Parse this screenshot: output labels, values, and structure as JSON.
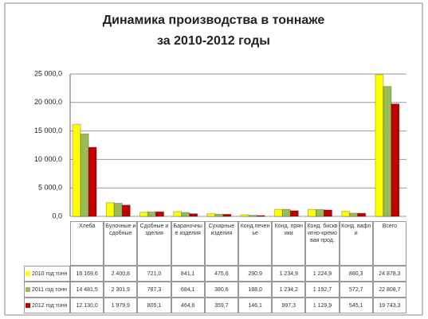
{
  "chart_data": {
    "type": "bar",
    "title": "Динамика производства в тоннаже",
    "subtitle": "за 2010-2012 годы",
    "categories": [
      "Хлеба",
      "Булочные и сдобные",
      "Сдобные изделия",
      "Бараночные изделия",
      "Сухарные изделия",
      "Конд.печенье",
      "Конд. пряники",
      "Конд. бисквитно-кремовая прод.",
      "Конд. вафли",
      "Всего"
    ],
    "series": [
      {
        "name": "2010 год тонн",
        "color": "#ffff00",
        "values": [
          16169.6,
          2400.8,
          721.0,
          841.1,
          475.6,
          290.9,
          1234.9,
          1224.9,
          880.3,
          24878.3
        ],
        "value_labels": [
          "16 169,6",
          "2 400,8",
          "721,0",
          "841,1",
          "475,6",
          "290,9",
          "1 234,9",
          "1 224,9",
          "880,3",
          "24 878,3"
        ]
      },
      {
        "name": "2011 год тонн",
        "color": "#9bbb59",
        "values": [
          14481.5,
          2301.9,
          787.3,
          684.1,
          380.6,
          188.0,
          1234.2,
          1192.7,
          572.7,
          22808.7
        ],
        "value_labels": [
          "14 481,5",
          "2 301,9",
          "787,3",
          "684,1",
          "380,6",
          "188,0",
          "1 234,2",
          "1 192,7",
          "572,7",
          "22 808,7"
        ]
      },
      {
        "name": "2012 год тонн",
        "color": "#c00000",
        "values": [
          12130.0,
          1979.9,
          805.1,
          464.6,
          359.7,
          146.1,
          997.3,
          1129.9,
          545.1,
          19743.3
        ],
        "value_labels": [
          "12 130,0",
          "1 979,9",
          "805,1",
          "464,6",
          "359,7",
          "146,1",
          "997,3",
          "1 129,9",
          "545,1",
          "19 743,3"
        ]
      }
    ],
    "ylim": [
      0,
      25000
    ],
    "yticks": [
      {
        "value": 0,
        "label": "0,0"
      },
      {
        "value": 5000,
        "label": "5 000,0"
      },
      {
        "value": 10000,
        "label": "10 000,0"
      },
      {
        "value": 15000,
        "label": "15 000,0"
      },
      {
        "value": 20000,
        "label": "20 000,0"
      },
      {
        "value": 25000,
        "label": "25 000,0"
      }
    ],
    "grid": true
  }
}
